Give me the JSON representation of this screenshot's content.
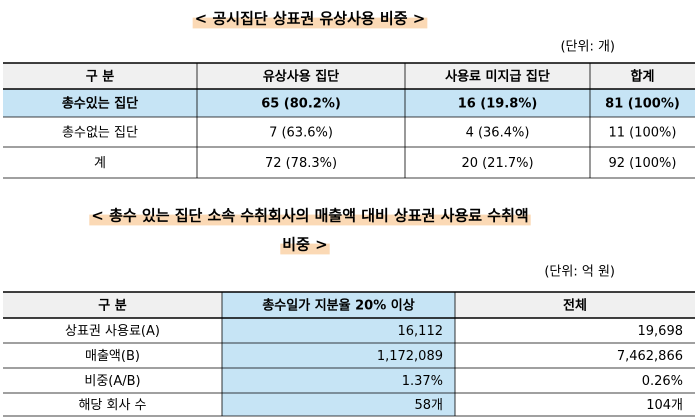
{
  "title1": "< 공시집단 상표권 유상사용 비중 >",
  "unit1": "(단위: 개)",
  "table1": {
    "header": [
      "구 분",
      "유상사용 집단",
      "사용료 미지급 집단",
      "합계"
    ],
    "rows": [
      [
        "총수있는 집단",
        "65 (80.2%)",
        "16 (19.8%)",
        "81 (100%)"
      ],
      [
        "총수없는 집단",
        "7 (63.6%)",
        "4 (36.4%)",
        "11 (100%)"
      ],
      [
        "계",
        "72 (78.3%)",
        "20 (21.7%)",
        "92 (100%)"
      ]
    ]
  },
  "title2": [
    "< 총수 있는 집단 소속 수취회사의 매출액 대비 상표권 사용료 수취액",
    "비중 >"
  ],
  "unit2": "(단위: 억 원)",
  "table2": {
    "header": [
      "구 분",
      "총수일가 지분율 20% 이상",
      "전체"
    ],
    "rows": [
      [
        "상표권 사용료(A)",
        "16,112",
        "19,698"
      ],
      [
        "매출액(B)",
        "1,172,089",
        "7,462,866"
      ],
      [
        "비중(A/B)",
        "1.37%",
        "0.26%"
      ],
      [
        "해당 회사 수",
        "58개",
        "104개"
      ]
    ]
  }
}
